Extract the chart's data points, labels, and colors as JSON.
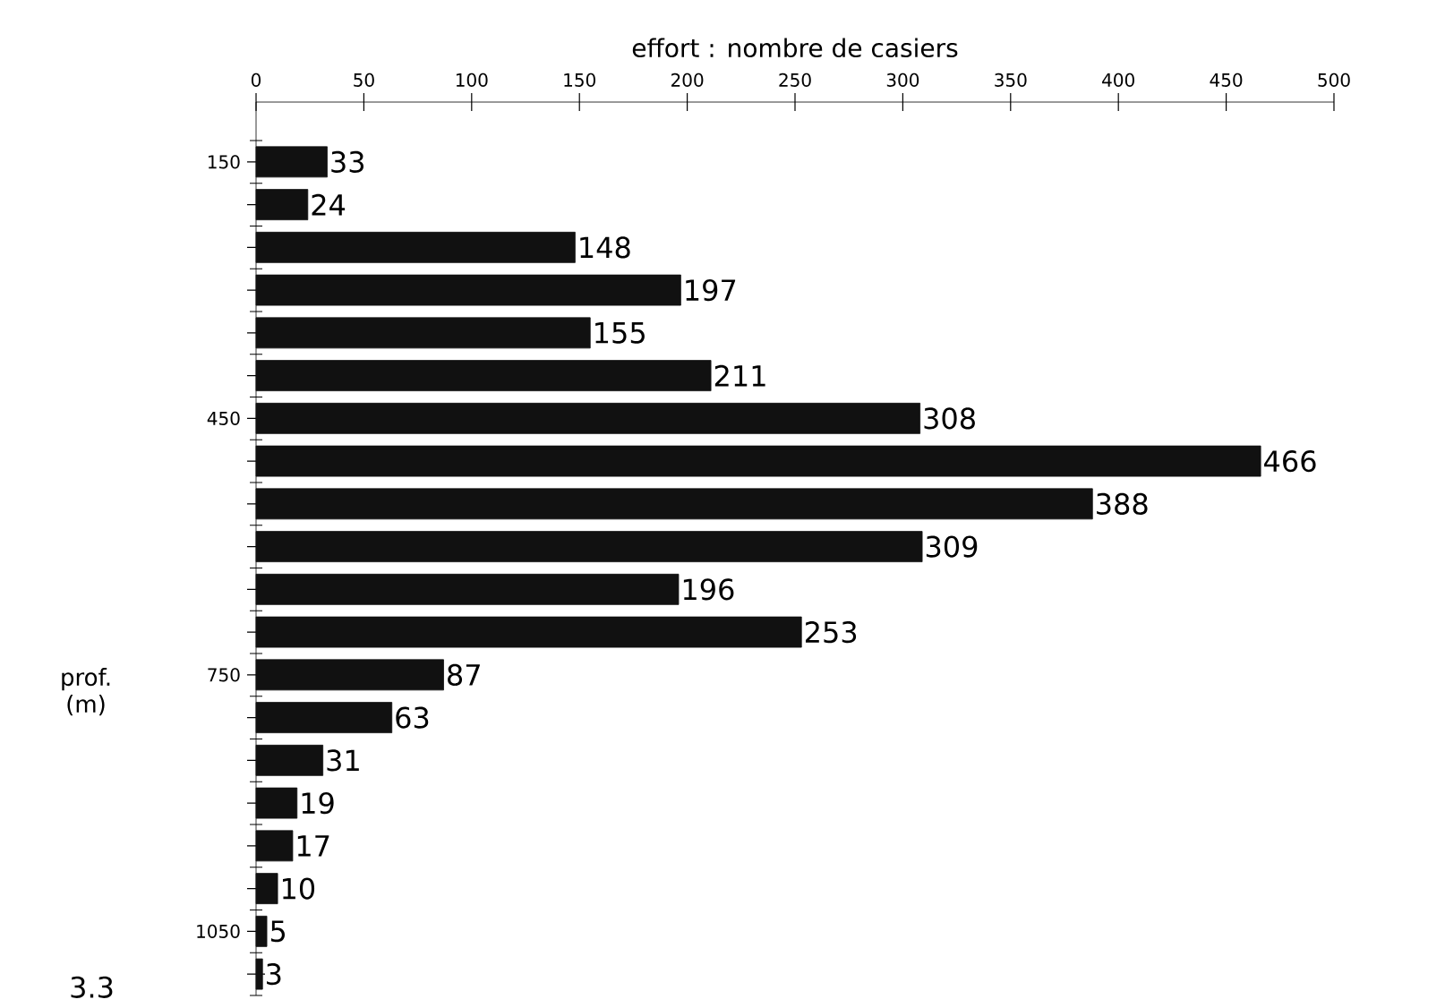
{
  "chart_data": {
    "type": "bar",
    "orientation": "horizontal",
    "xlabel": "effort : nombre de casiers",
    "ylabel": "prof. (m)",
    "categories": [
      "150",
      null,
      null,
      null,
      null,
      null,
      "450",
      null,
      null,
      null,
      null,
      null,
      "750",
      null,
      null,
      null,
      null,
      null,
      "1050",
      null
    ],
    "values": [
      33,
      24,
      148,
      197,
      155,
      211,
      308,
      466,
      388,
      309,
      196,
      253,
      87,
      63,
      31,
      19,
      17,
      10,
      5,
      3
    ],
    "color": "#111111",
    "xlim": [
      0,
      500
    ],
    "xticks": [
      0,
      50,
      100,
      150,
      200,
      250,
      300,
      350,
      400,
      450,
      500
    ],
    "data_labels": true,
    "annotations": [
      "3.3"
    ]
  }
}
